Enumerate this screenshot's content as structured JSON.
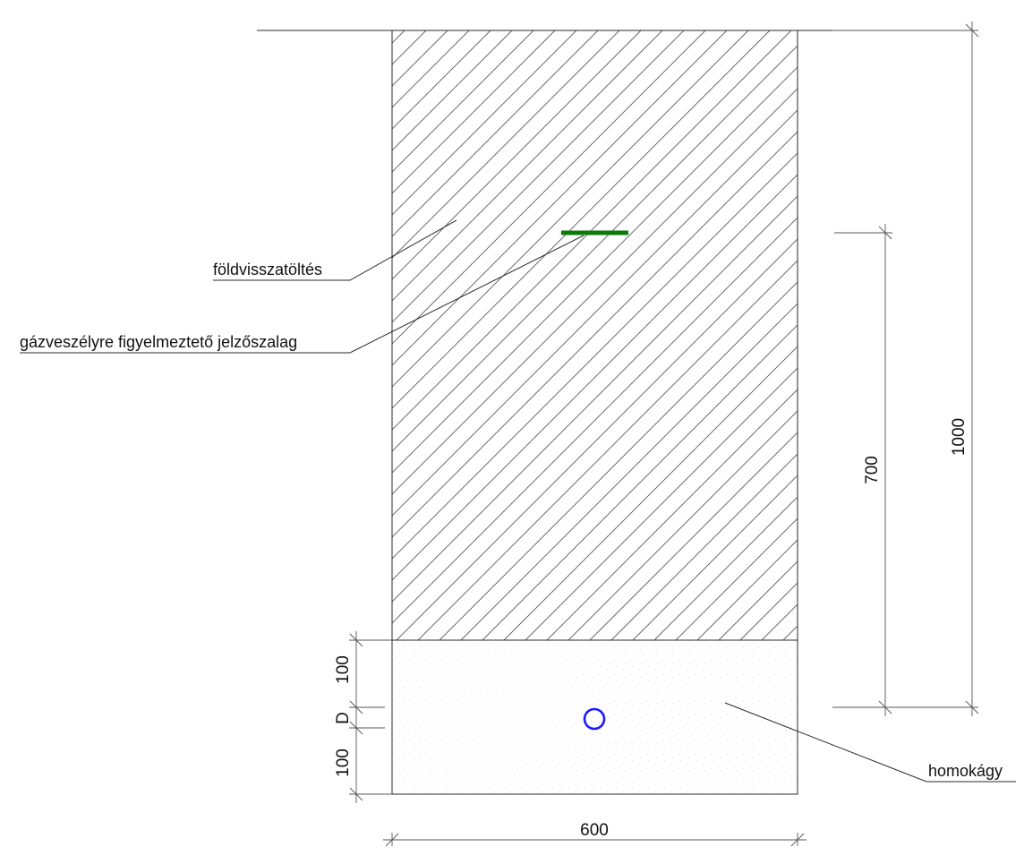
{
  "labels": {
    "backfill": "földvisszatöltés",
    "warning_tape": "gázveszélyre figyelmeztető jelzőszalag",
    "sand_bed": "homokágy"
  },
  "dimensions": {
    "total_depth": "1000",
    "tape_depth": "700",
    "bed_above_pipe": "100",
    "pipe_diameter": "D",
    "bed_below_pipe": "100",
    "trench_width": "600"
  },
  "colors": {
    "warning_tape": "#0a7a0a",
    "pipe": "#1a1aff",
    "lines": "#2a2a2a"
  }
}
